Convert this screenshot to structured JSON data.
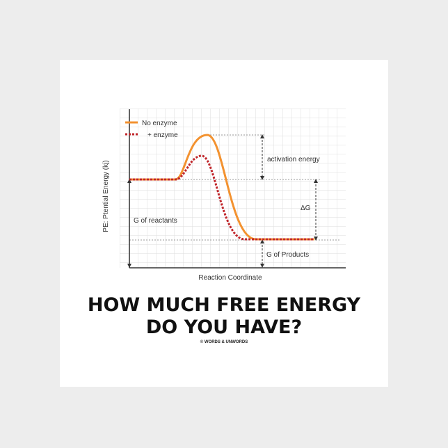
{
  "legend": {
    "items": [
      "No enzyme",
      "+ enzyme"
    ]
  },
  "axes": {
    "y_label": "PE:  Ptential Energy (kj)",
    "x_label": "Reaction Coordinate"
  },
  "annotations": {
    "activation": "activation energy",
    "delta_g": "ΔG",
    "reactants": "G of reactants",
    "products": "G of Products"
  },
  "headline": {
    "line1": "HOW MUCH FREE ENERGY",
    "line2": "DO YOU HAVE?"
  },
  "credit": "© WORDS & UNWORDS"
}
